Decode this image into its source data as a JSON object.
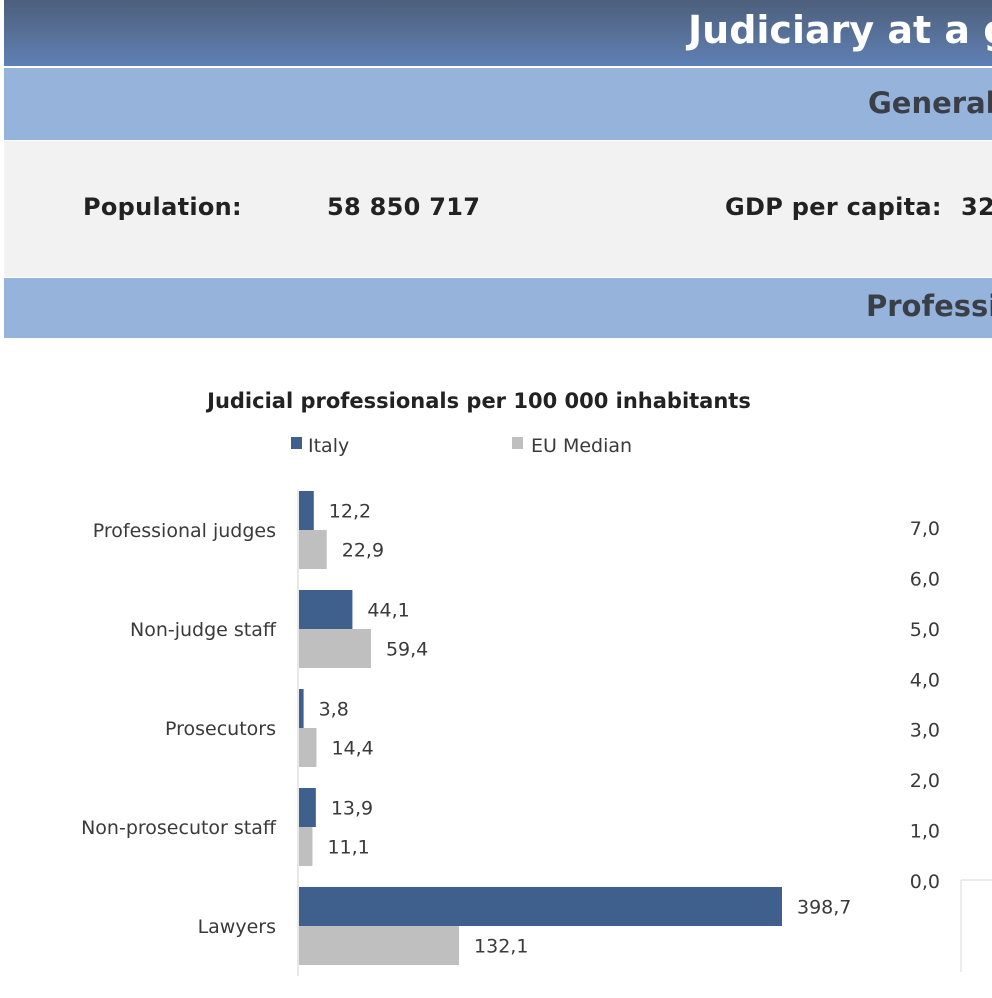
{
  "header": {
    "title": "Judiciary at a gla"
  },
  "general_section": {
    "title": "General"
  },
  "info": {
    "population_label": "Population:",
    "population_value": "58 850 717",
    "gdp_label": "GDP per capita:",
    "gdp_value_partial": "32"
  },
  "professionals_section": {
    "title": "Professio"
  },
  "colors": {
    "italy": "#3f5f8c",
    "eu_median": "#bfbfbf"
  },
  "chart_data": [
    {
      "type": "bar",
      "orientation": "horizontal",
      "title": "Judicial professionals per 100 000 inhabitants",
      "categories": [
        "Professional judges",
        "Non-judge staff",
        "Prosecutors",
        "Non-prosecutor staff",
        "Lawyers"
      ],
      "series": [
        {
          "name": "Italy",
          "values": [
            12.2,
            44.1,
            3.8,
            13.9,
            398.7
          ],
          "labels": [
            "12,2",
            "44,1",
            "3,8",
            "13,9",
            "398,7"
          ]
        },
        {
          "name": "EU Median",
          "values": [
            22.9,
            59.4,
            14.4,
            11.1,
            132.1
          ],
          "labels": [
            "22,9",
            "59,4",
            "14,4",
            "11,1",
            "132,1"
          ]
        }
      ],
      "legend_position": "top",
      "xlim": [
        0,
        400
      ]
    },
    {
      "type": "bar",
      "partial": true,
      "ylim": [
        0,
        7
      ],
      "y_tick_labels": [
        "7,0",
        "6,0",
        "5,0",
        "4,0",
        "3,0",
        "2,0",
        "1,0",
        "0,0"
      ]
    }
  ]
}
